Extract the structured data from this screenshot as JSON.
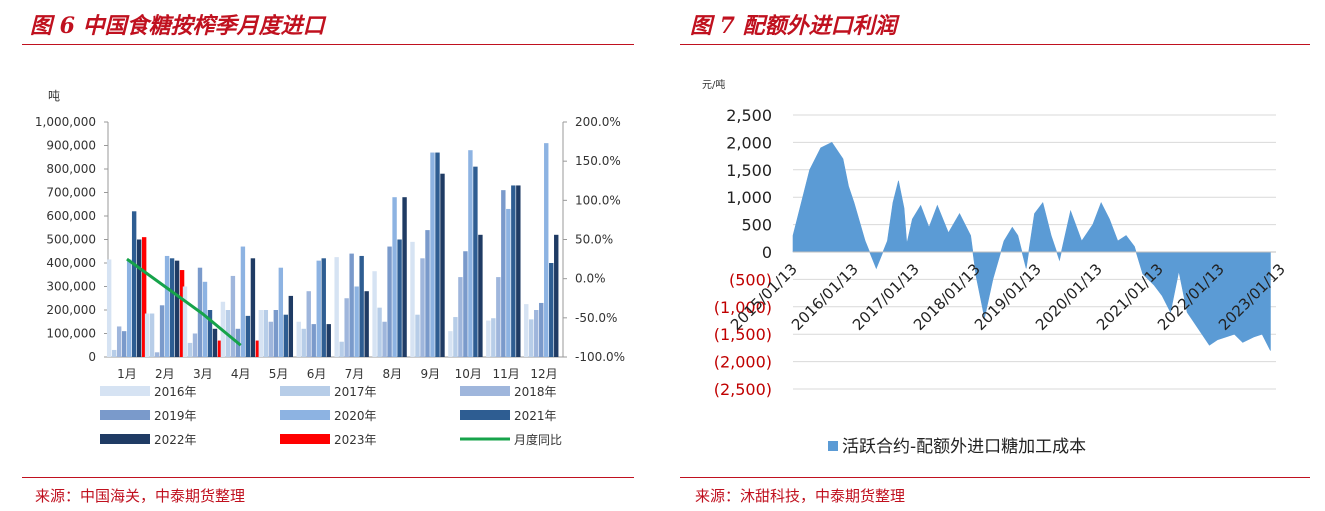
{
  "figure6": {
    "title": "图 6  中国食糖按榨季月度进口",
    "source": "来源：中国海关，中泰期货整理",
    "chart_data": {
      "type": "bar",
      "unit_label": "吨",
      "categories": [
        "1月",
        "2月",
        "3月",
        "4月",
        "5月",
        "6月",
        "7月",
        "8月",
        "9月",
        "10月",
        "11月",
        "12月"
      ],
      "ylim": [
        0,
        1000000
      ],
      "y_ticks": [
        "1,000,000",
        "900,000",
        "800,000",
        "700,000",
        "600,000",
        "500,000",
        "400,000",
        "300,000",
        "200,000",
        "100,000",
        "0"
      ],
      "y2lim": [
        -1.0,
        2.0
      ],
      "y2_ticks": [
        "200.0%",
        "150.0%",
        "100.0%",
        "50.0%",
        "0.0%",
        "-50.0%",
        "-100.0%"
      ],
      "series": [
        {
          "name": "2016年",
          "color": "#d6e3f3",
          "values": [
            415000,
            185000,
            300000,
            235000,
            200000,
            150000,
            425000,
            365000,
            490000,
            110000,
            155000,
            225000
          ]
        },
        {
          "name": "2017年",
          "color": "#b7cde8",
          "values": [
            30000,
            185000,
            60000,
            200000,
            200000,
            120000,
            65000,
            210000,
            180000,
            170000,
            165000,
            160000
          ]
        },
        {
          "name": "2018年",
          "color": "#9fb6dc",
          "values": [
            130000,
            20000,
            100000,
            345000,
            150000,
            280000,
            250000,
            150000,
            420000,
            340000,
            340000,
            200000
          ]
        },
        {
          "name": "2019年",
          "color": "#7a9acb",
          "values": [
            110000,
            220000,
            380000,
            120000,
            200000,
            140000,
            440000,
            470000,
            540000,
            450000,
            710000,
            230000
          ]
        },
        {
          "name": "2020年",
          "color": "#8db3e2",
          "values": [
            415000,
            430000,
            320000,
            470000,
            380000,
            410000,
            300000,
            680000,
            870000,
            880000,
            630000,
            910000
          ]
        },
        {
          "name": "2021年",
          "color": "#2e5d92",
          "values": [
            620000,
            420000,
            200000,
            175000,
            180000,
            420000,
            430000,
            500000,
            870000,
            810000,
            730000,
            400000
          ]
        },
        {
          "name": "2022年",
          "color": "#1f3b64",
          "values": [
            500000,
            410000,
            120000,
            420000,
            260000,
            140000,
            280000,
            680000,
            780000,
            520000,
            730000,
            520000
          ]
        },
        {
          "name": "2023年",
          "color": "#ff0000",
          "values": [
            510000,
            370000,
            70000,
            70000,
            null,
            null,
            null,
            null,
            null,
            null,
            null,
            null
          ]
        }
      ],
      "line": {
        "name": "月度同比",
        "color": "#16a34a",
        "values": [
          0.25,
          -0.1,
          -0.45,
          -0.85
        ]
      }
    }
  },
  "figure7": {
    "title": "图 7  配额外进口利润",
    "source": "来源：沐甜科技，中泰期货整理",
    "chart_data": {
      "type": "area",
      "unit_label": "元/吨",
      "ylim": [
        -2500,
        2500
      ],
      "y_ticks": [
        "2,500",
        "2,000",
        "1,500",
        "1,000",
        "500",
        "0",
        "(500)",
        "(1,000)",
        "(1,500)",
        "(2,000)",
        "(2,500)"
      ],
      "x_ticks": [
        "2015/01/13",
        "2016/01/13",
        "2017/01/13",
        "2018/01/13",
        "2019/01/13",
        "2020/01/13",
        "2021/01/13",
        "2022/01/13",
        "2023/01/13"
      ],
      "series_name": "活跃合约-配额外进口糖加工成本",
      "color": "#5b9bd5",
      "x": [
        2015.0,
        2015.15,
        2015.3,
        2015.5,
        2015.7,
        2015.9,
        2016.0,
        2016.1,
        2016.3,
        2016.5,
        2016.7,
        2016.8,
        2016.9,
        2017.0,
        2017.05,
        2017.15,
        2017.3,
        2017.45,
        2017.6,
        2017.8,
        2018.0,
        2018.2,
        2018.3,
        2018.45,
        2018.6,
        2018.8,
        2018.95,
        2019.05,
        2019.2,
        2019.35,
        2019.5,
        2019.65,
        2019.8,
        2020.0,
        2020.2,
        2020.4,
        2020.55,
        2020.7,
        2020.85,
        2021.0,
        2021.15,
        2021.3,
        2021.5,
        2021.65,
        2021.8,
        2021.95,
        2022.1,
        2022.3,
        2022.5,
        2022.65,
        2022.8,
        2022.95,
        2023.1,
        2023.3,
        2023.45,
        2023.6
      ],
      "y": [
        300,
        900,
        1500,
        1900,
        2000,
        1700,
        1200,
        900,
        200,
        -300,
        200,
        900,
        1300,
        800,
        150,
        600,
        850,
        450,
        850,
        350,
        700,
        300,
        -450,
        -1200,
        -500,
        200,
        450,
        300,
        -300,
        700,
        900,
        300,
        -150,
        750,
        200,
        500,
        900,
        600,
        200,
        300,
        100,
        -400,
        -600,
        -800,
        -1100,
        -350,
        -1100,
        -1400,
        -1700,
        -1600,
        -1550,
        -1500,
        -1650,
        -1550,
        -1500,
        -1800
      ]
    }
  }
}
